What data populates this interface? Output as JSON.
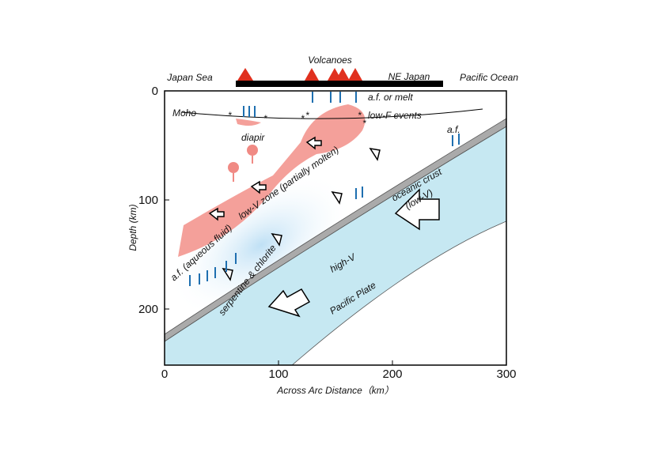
{
  "header": {
    "top_label": "Volcanoes",
    "regions": [
      "Japan Sea",
      "NE Japan",
      "Pacific Ocean"
    ]
  },
  "axes": {
    "x_label": "Across Arc Distance（km）",
    "y_label": "Depth (km)",
    "x_ticks": [
      0,
      100,
      200,
      300
    ],
    "y_ticks": [
      0,
      100,
      200
    ]
  },
  "labels": {
    "moho": "Moho",
    "melt": "a.f. or melt",
    "low_f": "low-F events",
    "diapir": "diapir",
    "af_right": "a.f.",
    "low_v_zone": "low-V zone (partially molten)",
    "oceanic_crust": "oceanic crust",
    "crust_low_v": "(low-V)",
    "high_v": "high-V",
    "pacific_plate": "Pacific Plate",
    "serpentine": "serpentine & chlorite",
    "aqueous": "a.f. (aqueous fluid)"
  }
}
